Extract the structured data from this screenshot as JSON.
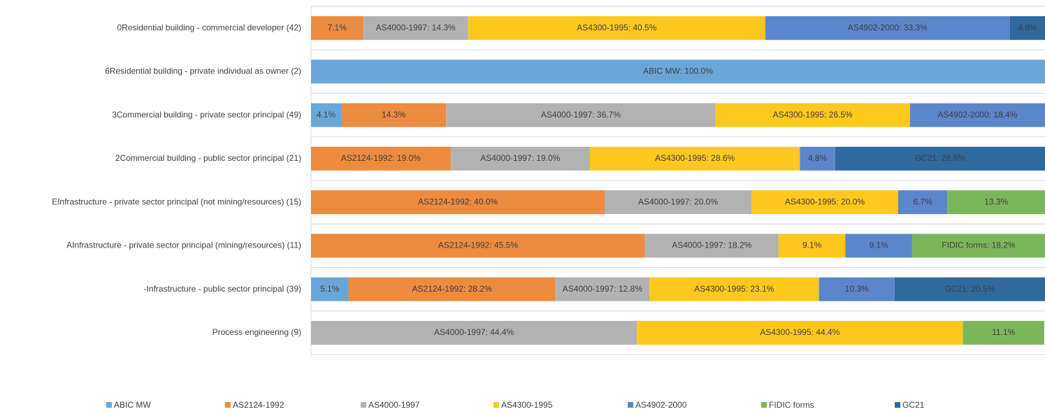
{
  "chart_data": {
    "type": "stacked-barh",
    "categories": [
      "0Residential building - commercial developer (42)",
      "6Residential building - private individual as owner (2)",
      "3Commercial building - private sector principal (49)",
      "2Commercial building - public sector principal (21)",
      "EInfrastructure - private sector principal (not mining/resources) (15)",
      "AInfrastructure - private sector principal (mining/resources) (11)",
      "-Infrastructure - public sector principal (39)",
      "Process engineering (9)"
    ],
    "xlim": [
      0,
      100
    ],
    "legend": "bottom",
    "series": [
      {
        "name": "ABIC MW",
        "color": "#6aa7d8",
        "values": [
          null,
          100.0,
          4.1,
          null,
          null,
          null,
          5.1,
          null
        ],
        "value_labels": [
          null,
          "ABIC MW: 100.0%",
          "4.1%",
          null,
          null,
          null,
          "5.1%",
          null
        ]
      },
      {
        "name": "AS2124-1992",
        "color": "#ed8b3f",
        "values": [
          7.1,
          null,
          14.3,
          19.0,
          40.0,
          45.5,
          28.2,
          null
        ],
        "value_labels": [
          "7.1%",
          null,
          "14.3%",
          "AS2124-1992: 19.0%",
          "AS2124-1992: 40.0%",
          "AS2124-1992: 45.5%",
          "AS2124-1992: 28.2%",
          null
        ]
      },
      {
        "name": "AS4000-1997",
        "color": "#b2b2b2",
        "values": [
          14.3,
          null,
          36.7,
          19.0,
          20.0,
          18.2,
          12.8,
          44.4
        ],
        "value_labels": [
          "AS4000-1997: 14.3%",
          null,
          "AS4000-1997: 36.7%",
          "AS4000-1997: 19.0%",
          "AS4000-1997: 20.0%",
          "AS4000-1997: 18.2%",
          "AS4000-1997: 12.8%",
          "AS4000-1997: 44.4%"
        ]
      },
      {
        "name": "AS4300-1995",
        "color": "#ffc81e",
        "values": [
          40.5,
          null,
          26.5,
          28.6,
          20.0,
          9.1,
          23.1,
          44.4
        ],
        "value_labels": [
          "AS4300-1995: 40.5%",
          null,
          "AS4300-1995: 26.5%",
          "AS4300-1995: 28.6%",
          "AS4300-1995: 20.0%",
          "9.1%",
          "AS4300-1995: 23.1%",
          "AS4300-1995: 44.4%"
        ]
      },
      {
        "name": "AS4902-2000",
        "color": "#5b86cc",
        "values": [
          33.3,
          null,
          18.4,
          4.8,
          6.7,
          9.1,
          10.3,
          null
        ],
        "value_labels": [
          "AS4902-2000: 33.3%",
          null,
          "AS4902-2000: 18.4%",
          "4.8%",
          "6.7%",
          "9.1%",
          "10.3%",
          null
        ]
      },
      {
        "name": "FIDIC forms",
        "color": "#7cb65b",
        "values": [
          null,
          null,
          null,
          null,
          13.3,
          18.2,
          null,
          11.1
        ],
        "value_labels": [
          null,
          null,
          null,
          null,
          "13.3%",
          "FIDIC forms: 18.2%",
          null,
          "11.1%"
        ]
      },
      {
        "name": "GC21",
        "color": "#2e6a9e",
        "values": [
          4.8,
          null,
          null,
          28.6,
          null,
          null,
          20.5,
          null
        ],
        "value_labels": [
          "4.8%",
          null,
          null,
          "GC21: 28.6%",
          null,
          null,
          "GC21: 20.5%",
          null
        ]
      }
    ]
  }
}
